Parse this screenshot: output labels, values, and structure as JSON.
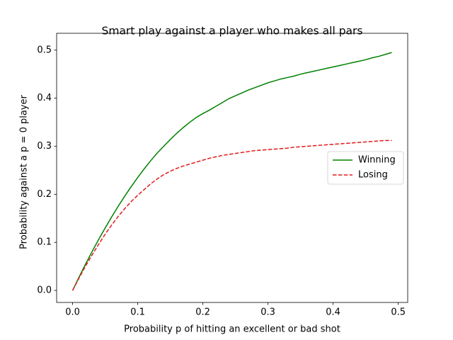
{
  "chart_data": {
    "type": "line",
    "title": "Smart play against a player who makes all pars",
    "x_label": "Probability p of hitting an excellent or bad shot",
    "y_label": "Probability against a p = 0 player",
    "x": [
      0,
      0.01,
      0.02,
      0.03,
      0.04,
      0.05,
      0.06,
      0.07,
      0.08,
      0.09,
      0.1,
      0.11,
      0.12,
      0.13,
      0.14,
      0.15,
      0.16,
      0.17,
      0.18,
      0.19,
      0.2,
      0.21,
      0.22,
      0.23,
      0.24,
      0.25,
      0.26,
      0.27,
      0.28,
      0.29,
      0.3,
      0.31,
      0.32,
      0.33,
      0.34,
      0.35,
      0.36,
      0.37,
      0.38,
      0.39,
      0.4,
      0.41,
      0.42,
      0.43,
      0.44,
      0.45,
      0.46,
      0.47,
      0.48,
      0.49
    ],
    "series": [
      {
        "name": "Winning",
        "color": "#008000",
        "linestyle": "solid",
        "values": [
          0,
          0.028,
          0.055,
          0.081,
          0.106,
          0.13,
          0.153,
          0.175,
          0.196,
          0.216,
          0.235,
          0.253,
          0.27,
          0.286,
          0.3,
          0.314,
          0.327,
          0.339,
          0.35,
          0.36,
          0.368,
          0.375,
          0.383,
          0.391,
          0.399,
          0.405,
          0.411,
          0.417,
          0.422,
          0.427,
          0.432,
          0.436,
          0.44,
          0.443,
          0.446,
          0.45,
          0.453,
          0.456,
          0.459,
          0.462,
          0.465,
          0.468,
          0.471,
          0.474,
          0.477,
          0.48,
          0.484,
          0.487,
          0.491,
          0.495
        ]
      },
      {
        "name": "Losing",
        "color": "#e31a1c",
        "linestyle": "dashed",
        "values": [
          0,
          0.026,
          0.051,
          0.074,
          0.096,
          0.117,
          0.136,
          0.154,
          0.17,
          0.185,
          0.198,
          0.21,
          0.222,
          0.232,
          0.241,
          0.248,
          0.254,
          0.259,
          0.263,
          0.267,
          0.271,
          0.275,
          0.278,
          0.281,
          0.283,
          0.285,
          0.287,
          0.289,
          0.291,
          0.292,
          0.293,
          0.294,
          0.295,
          0.296,
          0.298,
          0.299,
          0.3,
          0.301,
          0.302,
          0.303,
          0.304,
          0.305,
          0.306,
          0.307,
          0.308,
          0.309,
          0.31,
          0.311,
          0.312,
          0.312
        ]
      }
    ],
    "xlim": [
      -0.0245,
      0.5145
    ],
    "ylim": [
      -0.025,
      0.535
    ],
    "xticks": [
      {
        "value": 0,
        "label": "0.0"
      },
      0.1,
      0.2,
      0.3,
      0.4,
      0.5
    ],
    "yticks": [
      {
        "value": 0,
        "label": "0.0"
      },
      0.1,
      0.2,
      0.3,
      0.4,
      0.5
    ],
    "legend": "center right"
  }
}
